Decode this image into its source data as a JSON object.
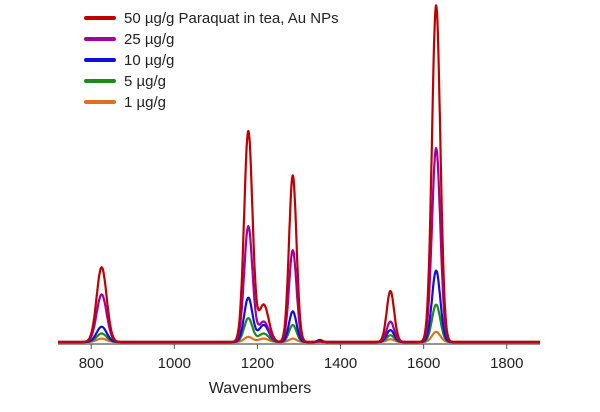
{
  "chart_data": {
    "type": "line",
    "title": "",
    "xlabel": "Wavenumbers",
    "ylabel": "",
    "xlim": [
      720,
      1880
    ],
    "ylim": [
      0,
      100
    ],
    "x_ticks": [
      800,
      1000,
      1200,
      1400,
      1600,
      1800
    ],
    "grid": false,
    "legend_position": "top-left",
    "peak_positions": [
      825,
      1178,
      1215,
      1285,
      1350,
      1520,
      1630
    ],
    "peak_widths": [
      12,
      10,
      12,
      9,
      6,
      9,
      10
    ],
    "series": [
      {
        "name": "50 µg/g Paraquat in tea, Au NPs",
        "color": "#c00000",
        "peak_heights": [
          22,
          62,
          11,
          49,
          0.2,
          15,
          99
        ]
      },
      {
        "name": "25 µg/g",
        "color": "#a000a0",
        "peak_heights": [
          14,
          34,
          6,
          27,
          0.1,
          6,
          57
        ]
      },
      {
        "name": "10 µg/g",
        "color": "#1010dd",
        "peak_heights": [
          4.5,
          13,
          5,
          9,
          0.6,
          3.5,
          21
        ]
      },
      {
        "name": "5 µg/g",
        "color": "#1e8a1e",
        "peak_heights": [
          2.5,
          7,
          2.5,
          5,
          0.2,
          2,
          11
        ]
      },
      {
        "name": "1 µg/g",
        "color": "#e07020",
        "peak_heights": [
          1,
          1.5,
          1,
          1,
          0.1,
          0.8,
          3
        ]
      }
    ]
  }
}
